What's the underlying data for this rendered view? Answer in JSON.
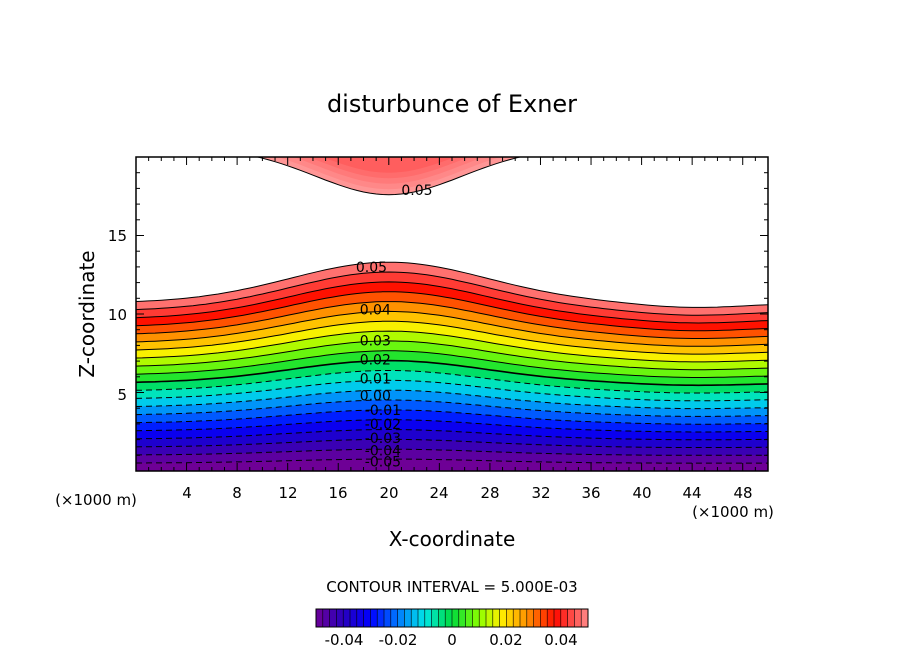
{
  "chart_data": {
    "type": "contour",
    "title": "disturbunce of Exner",
    "xlabel": "X-coordinate",
    "ylabel": "Z-coordinate",
    "x_unit_left": "(×1000 m)",
    "x_unit_right": "(×1000 m)",
    "xlim": [
      0,
      50
    ],
    "ylim": [
      0,
      20
    ],
    "x_ticks": [
      "4",
      "8",
      "12",
      "16",
      "20",
      "24",
      "28",
      "32",
      "36",
      "40",
      "44",
      "48"
    ],
    "y_ticks": [
      "5",
      "10",
      "15"
    ],
    "contour_interval_text": "CONTOUR INTERVAL = 5.000E-03",
    "colorbar_ticks": [
      "-0.04",
      "-0.02",
      "0",
      "0.02",
      "0.04"
    ],
    "colorbar_range": [
      -0.05,
      0.05
    ],
    "level_range": [
      -0.05,
      0.05
    ],
    "level_step": 0.005,
    "lower_field": {
      "crest_x": 20,
      "z_of_0_05_at_edges": 10.7,
      "z_of_0_05_at_crest": 13.3,
      "z_of_0_05_at_x44": 10.4,
      "z_of_minus_0_05_at_edges": 0.5
    },
    "upper_field": {
      "crest_x": 20,
      "z_of_0_05_at_crest": 17.6,
      "z_of_0_05_at_x9": 20
    },
    "contour_labels": [
      {
        "text": "0.05",
        "x": 21,
        "z": 17.9
      },
      {
        "text": "0.05",
        "x": 17.4,
        "z": 13.0
      },
      {
        "text": "0.04",
        "x": 17.7,
        "z": 10.3
      },
      {
        "text": "0.03",
        "x": 17.7,
        "z": 8.3
      },
      {
        "text": "0.02",
        "x": 17.7,
        "z": 7.1
      },
      {
        "text": "0.01",
        "x": 17.7,
        "z": 5.9
      },
      {
        "text": "0.00",
        "x": 17.7,
        "z": 4.8
      },
      {
        "text": "-0.01",
        "x": 18.1,
        "z": 3.9
      },
      {
        "text": "-0.02",
        "x": 18.1,
        "z": 3.0
      },
      {
        "text": "-0.03",
        "x": 18.1,
        "z": 2.1
      },
      {
        "text": "-0.04",
        "x": 18.1,
        "z": 1.3
      },
      {
        "text": "-0.05",
        "x": 18.1,
        "z": 0.6
      }
    ]
  }
}
